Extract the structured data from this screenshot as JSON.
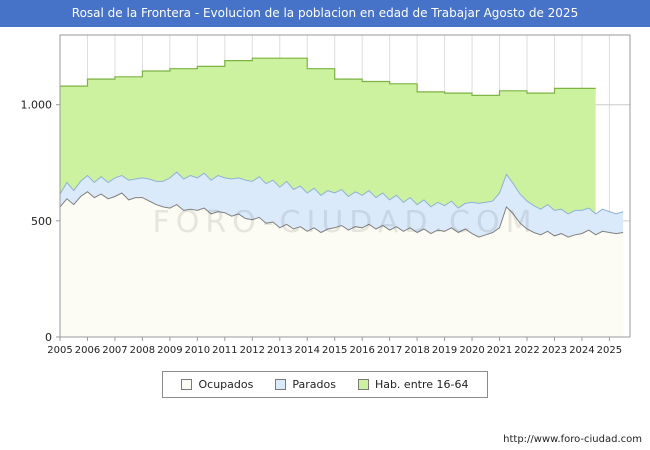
{
  "title": "Rosal de la Frontera - Evolucion de la poblacion en edad de Trabajar Agosto de 2025",
  "watermark": "FORO-CIUDAD.COM",
  "footer_url": "http://www.foro-ciudad.com",
  "colors": {
    "title_bar": "#4673c8",
    "title_text": "#ffffff",
    "hab_fill": "#ccf2a0",
    "hab_line": "#7cb342",
    "parados_fill": "#dbeafb",
    "parados_line": "#8fb2d4",
    "ocupados_fill": "#fcfcf4",
    "ocupados_line": "#808080",
    "grid_line": "#dddddd",
    "axis_line": "#999999"
  },
  "legend": {
    "items": [
      {
        "label": "Ocupados",
        "color": "#fcfcf4"
      },
      {
        "label": "Parados",
        "color": "#dbeafb"
      },
      {
        "label": "Hab. entre 16-64",
        "color": "#ccf2a0"
      }
    ]
  },
  "chart_data": {
    "type": "area",
    "title": "Rosal de la Frontera - Evolucion de la poblacion en edad de Trabajar Agosto de 2025",
    "xlabel": "",
    "ylabel": "",
    "ylim": [
      0,
      1300
    ],
    "yticks": [
      0,
      500,
      1000
    ],
    "ytick_labels": [
      "0",
      "500",
      "1.000"
    ],
    "xticks": [
      2005,
      2006,
      2007,
      2008,
      2009,
      2010,
      2011,
      2012,
      2013,
      2014,
      2015,
      2016,
      2017,
      2018,
      2019,
      2020,
      2021,
      2022,
      2023,
      2024,
      2025
    ],
    "x_max": 2025.75,
    "grid": true,
    "legend_position": "bottom",
    "legend_entries": [
      "Ocupados",
      "Parados",
      "Hab. entre 16-64"
    ],
    "series_hab": {
      "name": "Hab. entre 16-64",
      "note": "annual stepped values, data ends mid-2024",
      "years": [
        2005,
        2006,
        2007,
        2008,
        2009,
        2010,
        2011,
        2012,
        2013,
        2014,
        2015,
        2016,
        2017,
        2018,
        2019,
        2020,
        2021,
        2022,
        2023,
        2024
      ],
      "values": [
        1080,
        1110,
        1120,
        1145,
        1155,
        1165,
        1190,
        1200,
        1200,
        1155,
        1110,
        1100,
        1090,
        1055,
        1050,
        1040,
        1060,
        1050,
        1070,
        1070
      ],
      "end_x": 2024.5
    },
    "x_start": 2005,
    "x_step": 0.25,
    "series_ocupados": {
      "name": "Ocupados",
      "values": [
        560,
        595,
        570,
        605,
        625,
        600,
        615,
        595,
        605,
        620,
        590,
        600,
        600,
        585,
        570,
        560,
        555,
        570,
        545,
        550,
        545,
        555,
        530,
        540,
        535,
        520,
        530,
        510,
        505,
        515,
        490,
        495,
        470,
        485,
        465,
        475,
        455,
        470,
        450,
        465,
        470,
        480,
        460,
        475,
        470,
        485,
        465,
        480,
        460,
        475,
        455,
        470,
        450,
        465,
        445,
        460,
        455,
        470,
        450,
        465,
        445,
        430,
        440,
        450,
        470,
        560,
        530,
        490,
        465,
        450,
        440,
        455,
        435,
        445,
        430,
        440,
        445,
        460,
        440,
        455,
        450,
        445,
        450
      ]
    },
    "series_parados": {
      "name": "Parados",
      "note": "stacked on top of Ocupados",
      "values": [
        55,
        70,
        60,
        65,
        70,
        65,
        75,
        70,
        80,
        75,
        85,
        80,
        85,
        95,
        100,
        110,
        130,
        140,
        135,
        145,
        140,
        150,
        145,
        155,
        150,
        160,
        155,
        165,
        165,
        175,
        170,
        180,
        175,
        185,
        170,
        175,
        165,
        170,
        160,
        165,
        150,
        155,
        145,
        150,
        140,
        145,
        135,
        140,
        130,
        135,
        125,
        130,
        120,
        125,
        115,
        120,
        110,
        115,
        105,
        110,
        135,
        145,
        140,
        135,
        150,
        140,
        130,
        125,
        120,
        115,
        110,
        115,
        110,
        105,
        100,
        105,
        100,
        95,
        90,
        95,
        90,
        85,
        90
      ]
    }
  }
}
